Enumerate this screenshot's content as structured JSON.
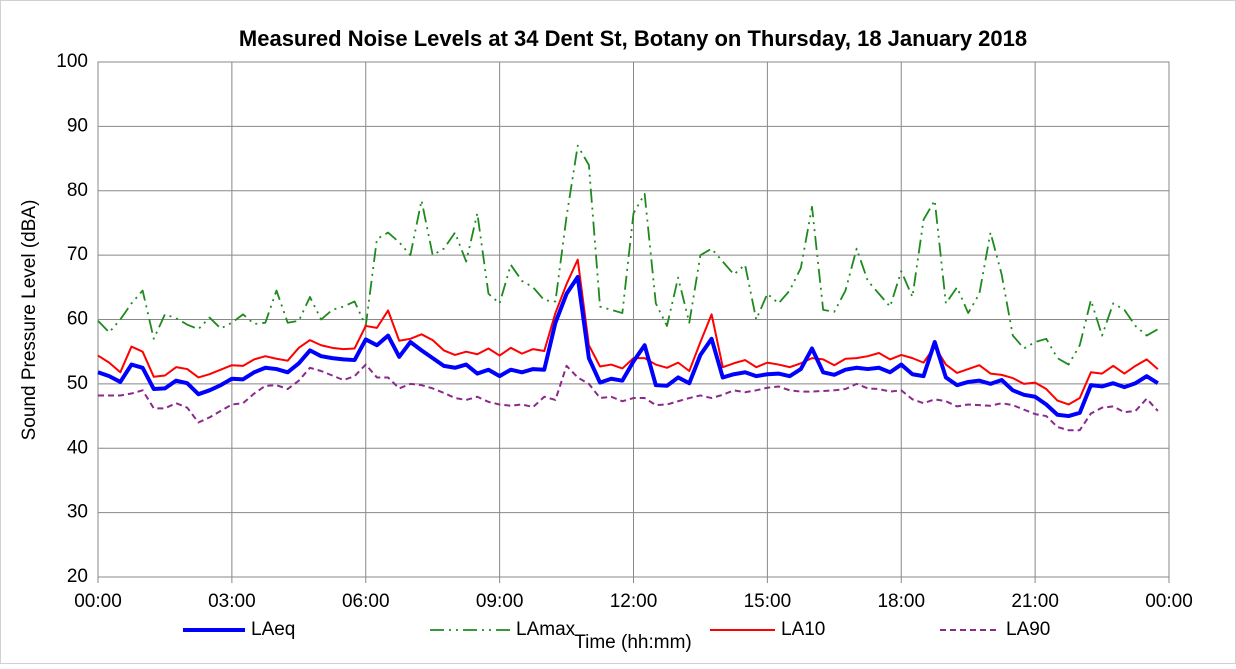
{
  "chart_data": {
    "type": "line",
    "title": "Measured Noise Levels at 34 Dent St, Botany on Thursday, 18 January 2018",
    "xlabel": "Time (hh:mm)",
    "ylabel": "Sound Pressure Level (dBA)",
    "x": [
      0,
      0.25,
      0.5,
      0.75,
      1,
      1.25,
      1.5,
      1.75,
      2,
      2.25,
      2.5,
      2.75,
      3,
      3.25,
      3.5,
      3.75,
      4,
      4.25,
      4.5,
      4.75,
      5,
      5.25,
      5.5,
      5.75,
      6,
      6.25,
      6.5,
      6.75,
      7,
      7.25,
      7.5,
      7.75,
      8,
      8.25,
      8.5,
      8.75,
      9,
      9.25,
      9.5,
      9.75,
      10,
      10.25,
      10.5,
      10.75,
      11,
      11.25,
      11.5,
      11.75,
      12,
      12.25,
      12.5,
      12.75,
      13,
      13.25,
      13.5,
      13.75,
      14,
      14.25,
      14.5,
      14.75,
      15,
      15.25,
      15.5,
      15.75,
      16,
      16.25,
      16.5,
      16.75,
      17,
      17.25,
      17.5,
      17.75,
      18,
      18.25,
      18.5,
      18.75,
      19,
      19.25,
      19.5,
      19.75,
      20,
      20.25,
      20.5,
      20.75,
      21,
      21.25,
      21.5,
      21.75,
      22,
      22.25,
      22.5,
      22.75,
      23,
      23.25,
      23.5,
      23.75
    ],
    "xlim": [
      0,
      24
    ],
    "xticks": [
      {
        "value": 0,
        "label": "00:00"
      },
      {
        "value": 3,
        "label": "03:00"
      },
      {
        "value": 6,
        "label": "06:00"
      },
      {
        "value": 9,
        "label": "09:00"
      },
      {
        "value": 12,
        "label": "12:00"
      },
      {
        "value": 15,
        "label": "15:00"
      },
      {
        "value": 18,
        "label": "18:00"
      },
      {
        "value": 21,
        "label": "21:00"
      },
      {
        "value": 24,
        "label": "00:00"
      }
    ],
    "ylim": [
      20,
      100
    ],
    "yticks": [
      20,
      30,
      40,
      50,
      60,
      70,
      80,
      90,
      100
    ],
    "grid": true,
    "legend": "bottom",
    "series": [
      {
        "name": "LAeq",
        "color": "#0000ff",
        "dash": "solid",
        "values": [
          51.8,
          51.2,
          50.3,
          53,
          52.5,
          49.2,
          49.3,
          50.5,
          50.1,
          48.4,
          49,
          49.8,
          50.8,
          50.7,
          51.8,
          52.5,
          52.3,
          51.8,
          53.2,
          55.2,
          54.3,
          54,
          53.8,
          53.7,
          56.9,
          56,
          57.5,
          54.2,
          56.5,
          55.2,
          54,
          52.8,
          52.5,
          53,
          51.6,
          52.2,
          51.2,
          52.2,
          51.8,
          52.3,
          52.2,
          59.5,
          64,
          66.6,
          54,
          50.2,
          50.8,
          50.5,
          53.5,
          56,
          49.8,
          49.7,
          51,
          50.1,
          54.5,
          57,
          51,
          51.5,
          51.8,
          51.2,
          51.5,
          51.6,
          51.2,
          52.3,
          55.5,
          51.8,
          51.4,
          52.2,
          52.5,
          52.3,
          52.5,
          51.8,
          53,
          51.5,
          51.2,
          56.5,
          51,
          49.8,
          50.3,
          50.5,
          50,
          50.6,
          49,
          48.3,
          48,
          46.8,
          45.2,
          45,
          45.5,
          49.8,
          49.6,
          50.1,
          49.5,
          50.1,
          51.2,
          50.1
        ]
      },
      {
        "name": "LAmax",
        "color": "#1e8a1e",
        "dash": "dash-dot-dot",
        "values": [
          59.8,
          58,
          60,
          62.5,
          64.5,
          57,
          60.8,
          60.2,
          59.2,
          58.5,
          60.3,
          58.6,
          59.5,
          60.8,
          59.3,
          59.5,
          64.5,
          59.5,
          59.8,
          63.5,
          60,
          61.5,
          62,
          62.8,
          59,
          72.5,
          73.5,
          72,
          70,
          78.5,
          70,
          71,
          73.5,
          69,
          76.5,
          64,
          62.5,
          68.5,
          66,
          65,
          63,
          62.8,
          76,
          87,
          84,
          62,
          61.5,
          61,
          76.5,
          79.5,
          62.5,
          59,
          66.5,
          59.5,
          70,
          71,
          69,
          67,
          68.5,
          60,
          64,
          62.5,
          64.5,
          68,
          77.5,
          61.5,
          61.2,
          64.5,
          71,
          66,
          64,
          62,
          67.5,
          63.5,
          75.5,
          78.5,
          62.5,
          65,
          61,
          64,
          73.5,
          67,
          57.5,
          55.5,
          56.5,
          57,
          54,
          53,
          56,
          63,
          57.5,
          62.5,
          61.5,
          59,
          57.5,
          58.5
        ]
      },
      {
        "name": "LA10",
        "color": "#ff0000",
        "dash": "solid",
        "values": [
          54.4,
          53.3,
          51.8,
          55.8,
          55,
          51.1,
          51.3,
          52.6,
          52.3,
          51,
          51.5,
          52.2,
          52.9,
          52.8,
          53.8,
          54.3,
          53.9,
          53.6,
          55.6,
          56.8,
          56,
          55.6,
          55.4,
          55.5,
          59,
          58.7,
          61.4,
          56.7,
          57,
          57.7,
          56.8,
          55.2,
          54.5,
          55,
          54.6,
          55.5,
          54.4,
          55.6,
          54.7,
          55.4,
          55.1,
          61,
          65.5,
          69.3,
          56,
          52.7,
          53,
          52.4,
          54,
          54,
          53,
          52.5,
          53.3,
          52,
          56.5,
          60.8,
          52.6,
          53.2,
          53.7,
          52.6,
          53.3,
          53,
          52.6,
          53.2,
          54,
          53.8,
          52.9,
          53.9,
          54,
          54.3,
          54.8,
          53.8,
          54.5,
          54,
          53.3,
          55.8,
          53,
          51.7,
          52.3,
          52.9,
          51.6,
          51.4,
          50.9,
          50,
          50.2,
          49.2,
          47.4,
          46.8,
          47.8,
          51.8,
          51.6,
          52.8,
          51.6,
          52.8,
          53.8,
          52.3
        ]
      },
      {
        "name": "LA90",
        "color": "#8b2a8b",
        "dash": "dashed",
        "values": [
          48.2,
          48.2,
          48.2,
          48.5,
          49,
          46.2,
          46.2,
          47,
          46.3,
          44,
          44.8,
          45.8,
          46.8,
          47,
          48.5,
          49.7,
          49.8,
          49.2,
          50.5,
          52.5,
          52,
          51.3,
          50.6,
          51.2,
          53,
          51,
          51,
          49.3,
          50,
          49.8,
          49.3,
          48.6,
          47.8,
          47.5,
          48,
          47.2,
          46.8,
          46.6,
          46.8,
          46.4,
          48,
          47.5,
          52.8,
          51,
          50,
          47.8,
          48,
          47.3,
          47.8,
          47.8,
          46.7,
          46.8,
          47.3,
          47.8,
          48.2,
          47.8,
          48.3,
          49,
          48.7,
          49,
          49.4,
          49.6,
          49,
          48.8,
          48.8,
          48.9,
          49,
          49.2,
          50,
          49.3,
          49.2,
          48.8,
          49,
          47.6,
          47,
          47.6,
          47.3,
          46.5,
          46.8,
          46.7,
          46.6,
          47,
          46.7,
          46,
          45.3,
          45,
          43.3,
          42.8,
          42.8,
          45.4,
          46.3,
          46.5,
          45.6,
          45.8,
          47.7,
          45.8
        ]
      }
    ]
  }
}
